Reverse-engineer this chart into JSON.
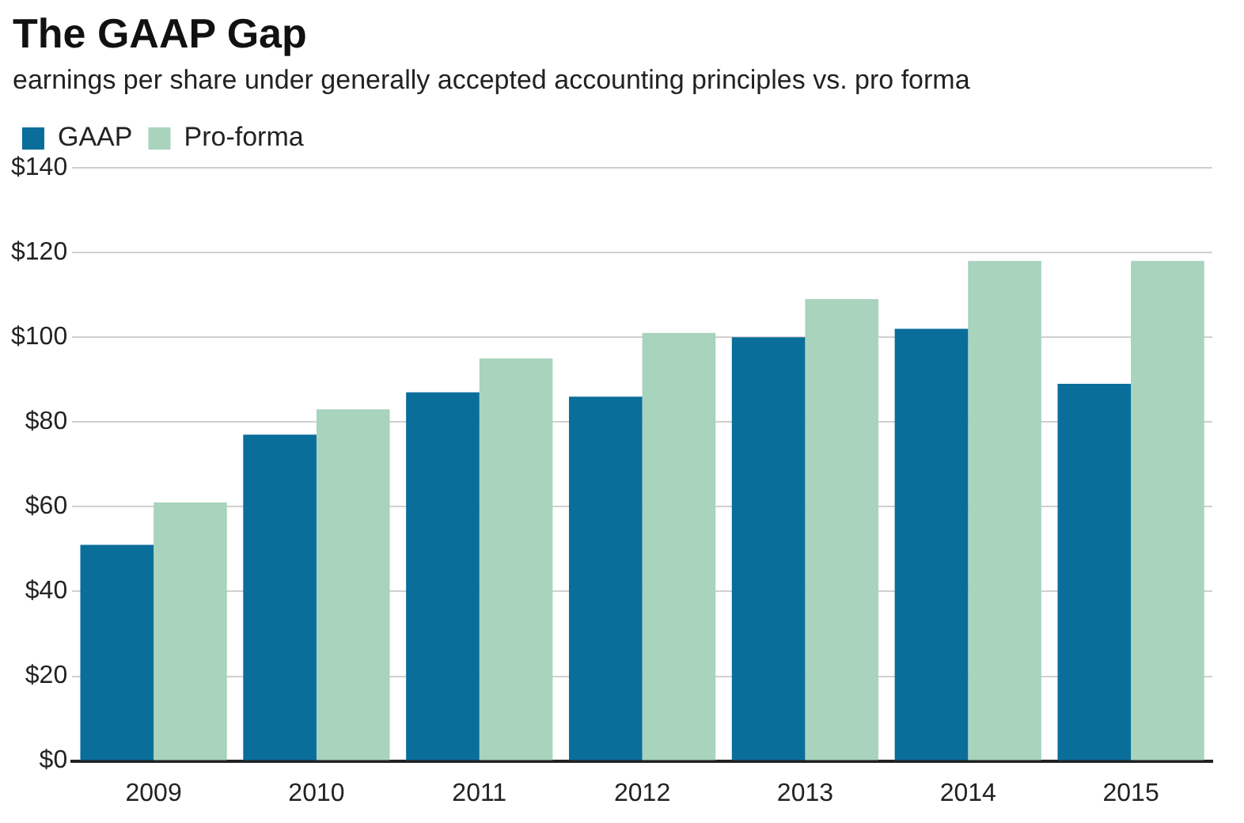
{
  "chart_data": {
    "type": "bar",
    "title": "The GAAP Gap",
    "subtitle": "earnings per share under generally accepted accounting principles vs. pro forma",
    "categories": [
      "2009",
      "2010",
      "2011",
      "2012",
      "2013",
      "2014",
      "2015"
    ],
    "series": [
      {
        "name": "GAAP",
        "color": "#0a6e9b",
        "values": [
          51,
          77,
          87,
          86,
          100,
          102,
          89
        ]
      },
      {
        "name": "Pro-forma",
        "color": "#a8d3bd",
        "values": [
          61,
          83,
          95,
          101,
          109,
          118,
          118
        ]
      }
    ],
    "ylim": [
      0,
      140
    ],
    "yticks": [
      {
        "value": 0,
        "label": "$0"
      },
      {
        "value": 20,
        "label": "$20"
      },
      {
        "value": 40,
        "label": "$40"
      },
      {
        "value": 60,
        "label": "$60"
      },
      {
        "value": 80,
        "label": "$80"
      },
      {
        "value": 100,
        "label": "$100"
      },
      {
        "value": 120,
        "label": "$120"
      },
      {
        "value": 140,
        "label": "$140"
      }
    ],
    "grid": "y",
    "legend": "top left"
  }
}
